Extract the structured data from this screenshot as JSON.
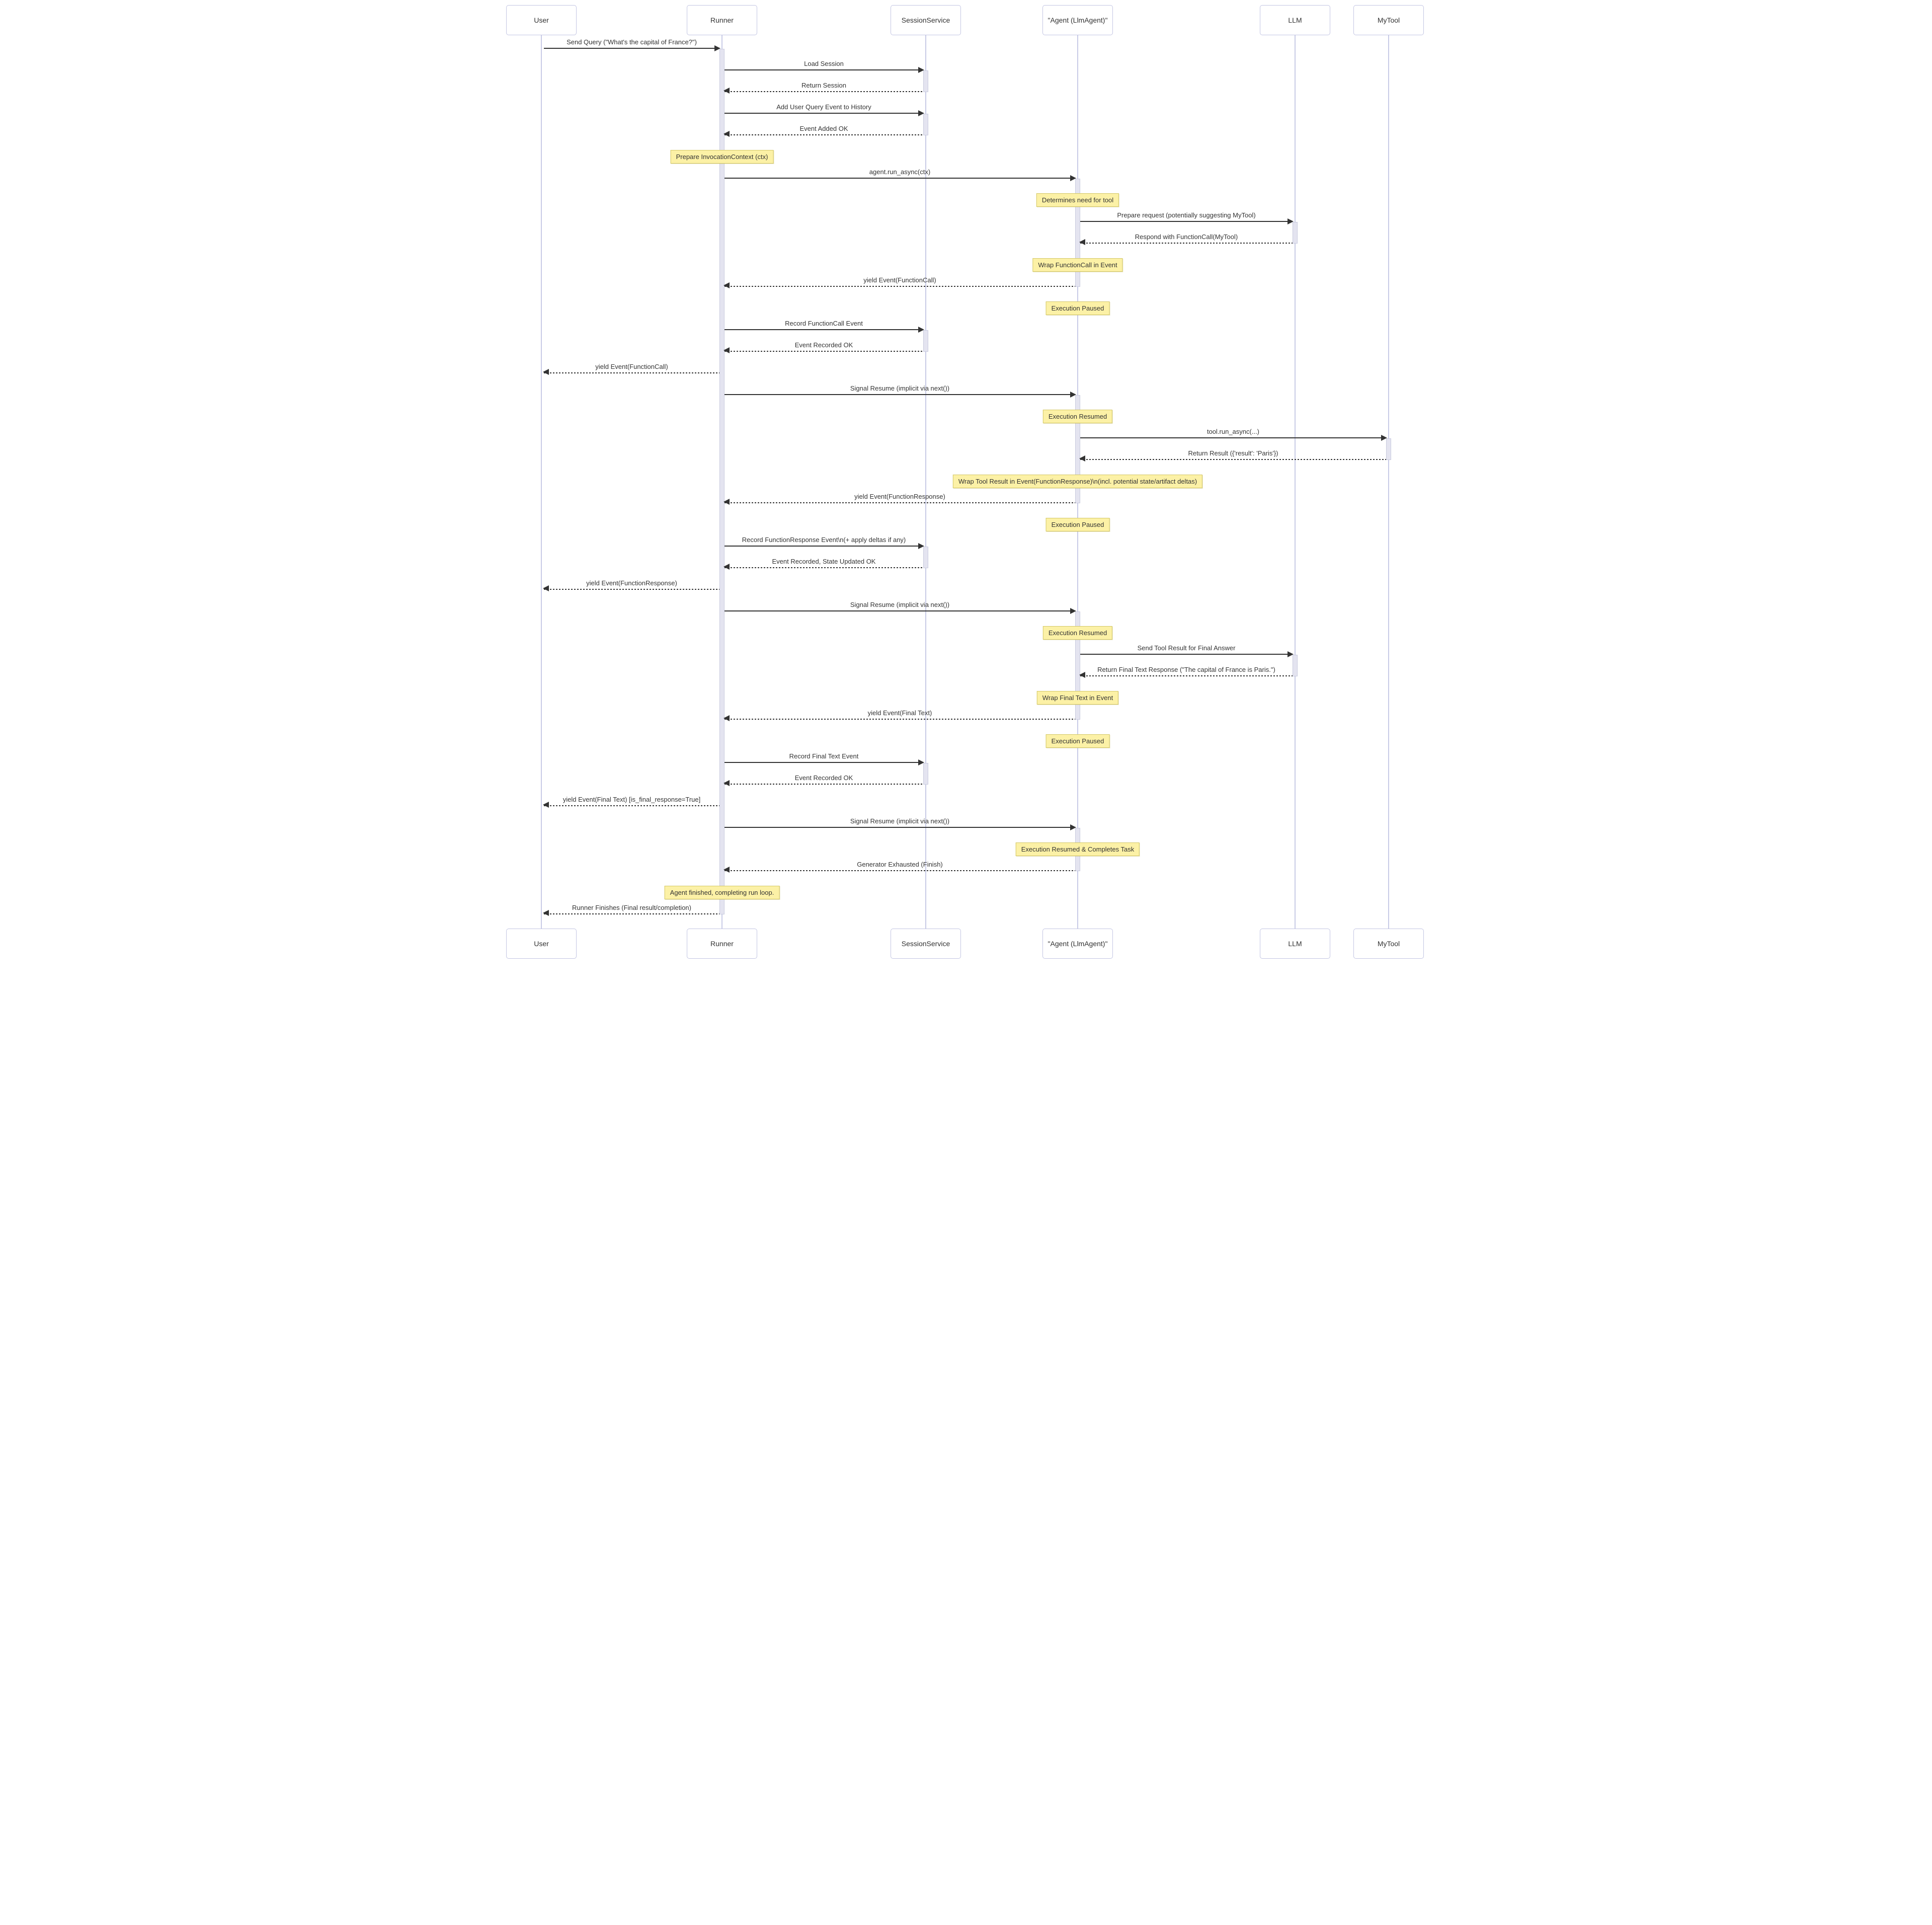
{
  "diagram": {
    "type": "sequence",
    "participants": [
      {
        "id": "user",
        "label": "User"
      },
      {
        "id": "runner",
        "label": "Runner"
      },
      {
        "id": "session",
        "label": "SessionService"
      },
      {
        "id": "agent",
        "label": "\"Agent (LlmAgent)\""
      },
      {
        "id": "llm",
        "label": "LLM"
      },
      {
        "id": "mytool",
        "label": "MyTool"
      }
    ],
    "events": [
      {
        "kind": "message",
        "from": "user",
        "to": "runner",
        "line": "solid",
        "text": "Send Query (\"What's the capital of France?\")"
      },
      {
        "kind": "message",
        "from": "runner",
        "to": "session",
        "line": "solid",
        "text": "Load Session"
      },
      {
        "kind": "message",
        "from": "session",
        "to": "runner",
        "line": "dashed",
        "text": "Return Session"
      },
      {
        "kind": "message",
        "from": "runner",
        "to": "session",
        "line": "solid",
        "text": "Add User Query Event to History"
      },
      {
        "kind": "message",
        "from": "session",
        "to": "runner",
        "line": "dashed",
        "text": "Event Added OK"
      },
      {
        "kind": "note",
        "over": "runner",
        "text": "Prepare InvocationContext (ctx)"
      },
      {
        "kind": "message",
        "from": "runner",
        "to": "agent",
        "line": "solid",
        "text": "agent.run_async(ctx)"
      },
      {
        "kind": "note",
        "over": "agent",
        "text": "Determines need for tool"
      },
      {
        "kind": "message",
        "from": "agent",
        "to": "llm",
        "line": "solid",
        "text": "Prepare request (potentially suggesting MyTool)"
      },
      {
        "kind": "message",
        "from": "llm",
        "to": "agent",
        "line": "dashed",
        "text": "Respond with FunctionCall(MyTool)"
      },
      {
        "kind": "note",
        "over": "agent",
        "text": "Wrap FunctionCall in Event"
      },
      {
        "kind": "message",
        "from": "agent",
        "to": "runner",
        "line": "dashed",
        "text": "yield Event(FunctionCall)"
      },
      {
        "kind": "note",
        "over": "agent",
        "text": "Execution Paused"
      },
      {
        "kind": "message",
        "from": "runner",
        "to": "session",
        "line": "solid",
        "text": "Record FunctionCall Event"
      },
      {
        "kind": "message",
        "from": "session",
        "to": "runner",
        "line": "dashed",
        "text": "Event Recorded OK"
      },
      {
        "kind": "message",
        "from": "runner",
        "to": "user",
        "line": "dashed",
        "text": "yield Event(FunctionCall)"
      },
      {
        "kind": "message",
        "from": "runner",
        "to": "agent",
        "line": "solid",
        "text": "Signal Resume (implicit via next())"
      },
      {
        "kind": "note",
        "over": "agent",
        "text": "Execution Resumed"
      },
      {
        "kind": "message",
        "from": "agent",
        "to": "mytool",
        "line": "solid",
        "text": "tool.run_async(...)"
      },
      {
        "kind": "message",
        "from": "mytool",
        "to": "agent",
        "line": "dashed",
        "text": "Return Result ({'result': 'Paris'})"
      },
      {
        "kind": "note",
        "over": "agent",
        "text": "Wrap Tool Result in Event(FunctionResponse)\\n(incl. potential state/artifact deltas)"
      },
      {
        "kind": "message",
        "from": "agent",
        "to": "runner",
        "line": "dashed",
        "text": "yield Event(FunctionResponse)"
      },
      {
        "kind": "note",
        "over": "agent",
        "text": "Execution Paused"
      },
      {
        "kind": "message",
        "from": "runner",
        "to": "session",
        "line": "solid",
        "text": "Record FunctionResponse Event\\n(+ apply deltas if any)"
      },
      {
        "kind": "message",
        "from": "session",
        "to": "runner",
        "line": "dashed",
        "text": "Event Recorded, State Updated OK"
      },
      {
        "kind": "message",
        "from": "runner",
        "to": "user",
        "line": "dashed",
        "text": "yield Event(FunctionResponse)"
      },
      {
        "kind": "message",
        "from": "runner",
        "to": "agent",
        "line": "solid",
        "text": "Signal Resume (implicit via next())"
      },
      {
        "kind": "note",
        "over": "agent",
        "text": "Execution Resumed"
      },
      {
        "kind": "message",
        "from": "agent",
        "to": "llm",
        "line": "solid",
        "text": "Send Tool Result for Final Answer"
      },
      {
        "kind": "message",
        "from": "llm",
        "to": "agent",
        "line": "dashed",
        "text": "Return Final Text Response (\"The capital of France is Paris.\")"
      },
      {
        "kind": "note",
        "over": "agent",
        "text": "Wrap Final Text in Event"
      },
      {
        "kind": "message",
        "from": "agent",
        "to": "runner",
        "line": "dashed",
        "text": "yield Event(Final Text)"
      },
      {
        "kind": "note",
        "over": "agent",
        "text": "Execution Paused"
      },
      {
        "kind": "message",
        "from": "runner",
        "to": "session",
        "line": "solid",
        "text": "Record Final Text Event"
      },
      {
        "kind": "message",
        "from": "session",
        "to": "runner",
        "line": "dashed",
        "text": "Event Recorded OK"
      },
      {
        "kind": "message",
        "from": "runner",
        "to": "user",
        "line": "dashed",
        "text": "yield Event(Final Text) [is_final_response=True]"
      },
      {
        "kind": "message",
        "from": "runner",
        "to": "agent",
        "line": "solid",
        "text": "Signal Resume (implicit via next())"
      },
      {
        "kind": "note",
        "over": "agent",
        "text": "Execution Resumed & Completes Task"
      },
      {
        "kind": "message",
        "from": "agent",
        "to": "runner",
        "line": "dashed",
        "text": "Generator Exhausted (Finish)"
      },
      {
        "kind": "note",
        "over": "runner",
        "text": "Agent finished, completing run loop."
      },
      {
        "kind": "message",
        "from": "runner",
        "to": "user",
        "line": "dashed",
        "text": "Runner Finishes (Final result/completion)"
      }
    ],
    "activations": [
      {
        "participant": "runner",
        "from": 0,
        "to": 40
      },
      {
        "participant": "session",
        "from": 1,
        "to": 2
      },
      {
        "participant": "session",
        "from": 3,
        "to": 4
      },
      {
        "participant": "session",
        "from": 13,
        "to": 14
      },
      {
        "participant": "session",
        "from": 23,
        "to": 24
      },
      {
        "participant": "session",
        "from": 33,
        "to": 34
      },
      {
        "participant": "agent",
        "from": 6,
        "to": 11
      },
      {
        "participant": "agent",
        "from": 16,
        "to": 21
      },
      {
        "participant": "agent",
        "from": 26,
        "to": 31
      },
      {
        "participant": "agent",
        "from": 36,
        "to": 38
      },
      {
        "participant": "llm",
        "from": 8,
        "to": 9
      },
      {
        "participant": "llm",
        "from": 28,
        "to": 29
      },
      {
        "participant": "mytool",
        "from": 18,
        "to": 19
      }
    ],
    "colors": {
      "note_fill": "#fcf1a6",
      "note_border": "#d3c766",
      "actor_fill": "#ffffff",
      "actor_border": "#c3c6e3",
      "lifeline": "#c8cbe6",
      "activation_fill": "#e4e4f0",
      "activation_border": "#c9cbde",
      "arrow": "#333333",
      "text": "#333333"
    }
  }
}
